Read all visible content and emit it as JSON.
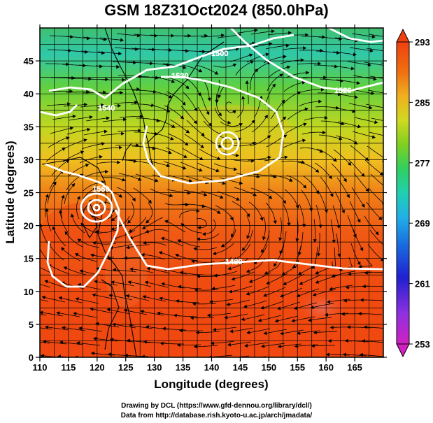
{
  "title": "GSM 18Z31Oct2024 (850.0hPa)",
  "x_axis": {
    "label": "Longitude (degrees)",
    "range": [
      110,
      170
    ],
    "ticks": [
      "110",
      "115",
      "120",
      "125",
      "130",
      "135",
      "140",
      "145",
      "150",
      "155",
      "160",
      "165"
    ]
  },
  "y_axis": {
    "label": "Latitude (degrees)",
    "range": [
      0,
      50
    ],
    "ticks": [
      "0",
      "5",
      "10",
      "15",
      "20",
      "25",
      "30",
      "35",
      "40",
      "45"
    ]
  },
  "colorbar": {
    "range": [
      253,
      293
    ],
    "ticks": [
      "293",
      "285",
      "277",
      "269",
      "261",
      "253"
    ],
    "colors": [
      "#d020c0",
      "#9030e0",
      "#2020d0",
      "#1a6de0",
      "#20b0e8",
      "#20d0b0",
      "#30d060",
      "#60d020",
      "#b0d820",
      "#f0d020",
      "#f0a018",
      "#f07010",
      "#f04010"
    ]
  },
  "contour_labels": [
    "1500",
    "1520",
    "1540",
    "1560",
    "1480",
    "1520"
  ],
  "credits": [
    "Drawing by DCL (https://www.gfd-dennou.org/library/dcl/)",
    "Data from http://database.rish.kyoto-u.ac.jp/arch/jmadata/"
  ]
}
